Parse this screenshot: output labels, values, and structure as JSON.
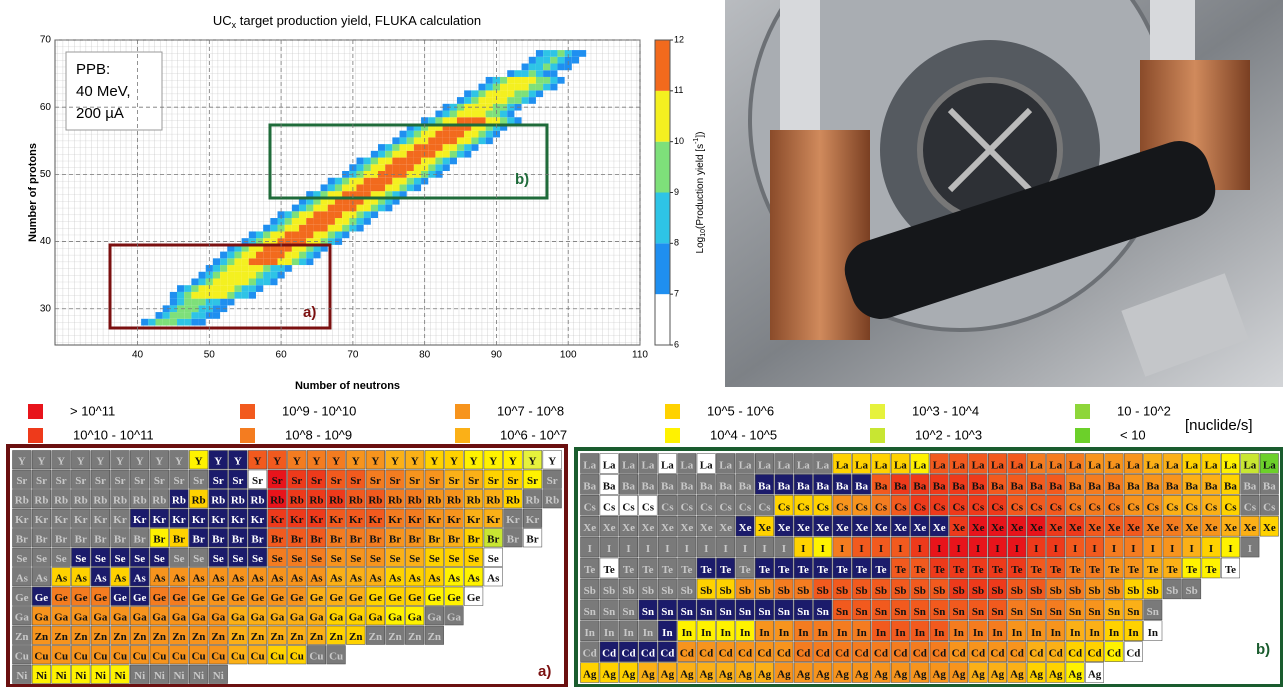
{
  "chart_data": {
    "type": "heatmap",
    "title": [
      "UC",
      "x",
      " target production yield, FLUKA calculation"
    ],
    "xlabel": "Number of neutrons",
    "ylabel": "Number of protons",
    "xlim": [
      28.5,
      110
    ],
    "ylim": [
      24.6,
      70
    ],
    "xticks": [
      40,
      50,
      60,
      70,
      80,
      90,
      100,
      110
    ],
    "yticks": [
      30,
      40,
      50,
      60,
      70
    ],
    "annotation": [
      "PPB:",
      "40 MeV,",
      "200 µA"
    ],
    "regions": [
      "a)",
      "b)"
    ],
    "colorbar": {
      "label": [
        "Log",
        "10",
        "(Production yield [s",
        "-1",
        "])"
      ],
      "lim": [
        6,
        12
      ],
      "ticks": [
        6,
        7,
        8,
        9,
        10,
        11,
        12
      ],
      "colors": [
        "#ffffff",
        "#1f8ff0",
        "#2ec4e6",
        "#7ee07a",
        "#f4f020",
        "#f26a1d"
      ]
    },
    "rows": [
      {
        "z": 28,
        "n0": 41,
        "levels": [
          7,
          8,
          9,
          9.5,
          9,
          8,
          8,
          7,
          7
        ]
      },
      {
        "z": 29,
        "n0": 43,
        "levels": [
          7,
          8,
          9,
          9.5,
          9,
          8,
          8,
          7,
          7
        ]
      },
      {
        "z": 30,
        "n0": 44,
        "levels": [
          7,
          8,
          9,
          9.5,
          9,
          8,
          8,
          7,
          7
        ]
      },
      {
        "z": 31,
        "n0": 45,
        "levels": [
          7,
          8,
          9,
          9.5,
          9,
          8,
          8,
          7,
          7
        ]
      },
      {
        "z": 32,
        "n0": 45,
        "levels": [
          7,
          8,
          9,
          10,
          10,
          10.5,
          10,
          10,
          9,
          8,
          8,
          7
        ]
      },
      {
        "z": 33,
        "n0": 46,
        "levels": [
          7,
          8,
          9,
          10,
          10,
          10.5,
          10,
          10,
          9,
          8,
          8,
          7
        ]
      },
      {
        "z": 34,
        "n0": 48,
        "levels": [
          7,
          8,
          9,
          10,
          10,
          10.5,
          10,
          10,
          9,
          8,
          8,
          7
        ]
      },
      {
        "z": 35,
        "n0": 49,
        "levels": [
          7,
          8,
          9,
          10,
          10,
          10.5,
          10,
          10,
          9,
          8,
          8,
          7
        ]
      },
      {
        "z": 36,
        "n0": 50,
        "levels": [
          7,
          8,
          9,
          10,
          10,
          10.5,
          10,
          10,
          9,
          8,
          8,
          7
        ]
      },
      {
        "z": 37,
        "n0": 51,
        "levels": [
          7,
          8,
          9,
          10,
          10,
          11,
          11.5,
          11.5,
          11,
          10,
          10,
          9,
          8,
          7
        ]
      },
      {
        "z": 38,
        "n0": 52,
        "levels": [
          7,
          8,
          9,
          10,
          10,
          11,
          11.5,
          11.5,
          11,
          10,
          10,
          9,
          8,
          7
        ]
      },
      {
        "z": 39,
        "n0": 53,
        "levels": [
          7,
          8,
          9,
          10,
          10,
          11,
          11.5,
          11.5,
          11,
          10,
          10,
          9,
          8,
          7
        ]
      },
      {
        "z": 40,
        "n0": 55,
        "levels": [
          7,
          8,
          9,
          10,
          10,
          11,
          11.5,
          11.5,
          11,
          10,
          10,
          9,
          8,
          7
        ]
      },
      {
        "z": 41,
        "n0": 56,
        "levels": [
          7,
          8,
          9,
          10,
          10,
          11,
          11.5,
          11.5,
          11,
          10,
          10,
          9,
          8,
          7
        ]
      },
      {
        "z": 42,
        "n0": 58,
        "levels": [
          7,
          8,
          9,
          10,
          10,
          11,
          11.5,
          11.5,
          11,
          10,
          10,
          9,
          8,
          7
        ]
      },
      {
        "z": 43,
        "n0": 59,
        "levels": [
          7,
          8,
          9,
          10,
          10,
          11,
          11.5,
          11.5,
          11,
          10,
          10,
          9,
          8,
          7
        ]
      },
      {
        "z": 44,
        "n0": 60,
        "levels": [
          7,
          8,
          9,
          10,
          10,
          11,
          11.5,
          11.5,
          11,
          10,
          10,
          9,
          8,
          7
        ]
      },
      {
        "z": 45,
        "n0": 62,
        "levels": [
          7,
          8,
          9,
          10,
          10,
          11,
          11.5,
          11.5,
          11,
          10,
          10,
          9,
          8,
          7
        ]
      },
      {
        "z": 46,
        "n0": 63,
        "levels": [
          7,
          8,
          9,
          10,
          10,
          11,
          11.5,
          11.5,
          11,
          10,
          10,
          9,
          8,
          7
        ]
      },
      {
        "z": 47,
        "n0": 64,
        "levels": [
          7,
          8,
          9,
          10,
          10,
          11,
          11.5,
          11.5,
          11,
          10,
          10,
          9,
          8,
          7
        ]
      },
      {
        "z": 48,
        "n0": 66,
        "levels": [
          7,
          8,
          9,
          10,
          10,
          11,
          11.5,
          11.5,
          11,
          10,
          10,
          9,
          8,
          7
        ]
      },
      {
        "z": 49,
        "n0": 67,
        "levels": [
          7,
          8,
          9,
          10,
          10,
          11,
          11.5,
          11.5,
          11,
          10,
          10,
          9,
          8,
          7
        ]
      },
      {
        "z": 50,
        "n0": 69,
        "levels": [
          7,
          8,
          9,
          10,
          10,
          11,
          11.5,
          11.5,
          11,
          10,
          10,
          9,
          8,
          7
        ]
      },
      {
        "z": 51,
        "n0": 70,
        "levels": [
          7,
          8,
          9,
          10,
          10,
          11,
          11.5,
          11.5,
          11,
          10,
          10,
          9,
          8,
          7
        ]
      },
      {
        "z": 52,
        "n0": 71,
        "levels": [
          7,
          8,
          9,
          10,
          10,
          11,
          11.5,
          11.5,
          11,
          10,
          10,
          9,
          8,
          7
        ]
      },
      {
        "z": 53,
        "n0": 73,
        "levels": [
          7,
          8,
          9,
          10,
          10,
          11,
          11.5,
          11.5,
          11,
          10,
          10,
          9,
          8,
          7
        ]
      },
      {
        "z": 54,
        "n0": 74,
        "levels": [
          7,
          8,
          9,
          10,
          10,
          11,
          11.5,
          11.5,
          11,
          10,
          10,
          9,
          8,
          7
        ]
      },
      {
        "z": 55,
        "n0": 76,
        "levels": [
          7,
          8,
          9,
          10,
          10,
          11,
          11.5,
          11.5,
          11,
          10,
          10,
          9,
          8,
          7
        ]
      },
      {
        "z": 56,
        "n0": 77,
        "levels": [
          7,
          8,
          9,
          10,
          10,
          11,
          11.5,
          11.5,
          11,
          10,
          10,
          9,
          8,
          7
        ]
      },
      {
        "z": 57,
        "n0": 78,
        "levels": [
          7,
          8,
          9,
          10,
          10,
          11,
          11.5,
          11.5,
          11,
          10,
          10,
          9,
          8,
          7
        ]
      },
      {
        "z": 58,
        "n0": 80,
        "levels": [
          7,
          8,
          9,
          10,
          10,
          11,
          11.5,
          11.5,
          11,
          10,
          10,
          9,
          8,
          7
        ]
      },
      {
        "z": 59,
        "n0": 82,
        "levels": [
          7,
          8,
          9,
          10,
          10,
          10.5,
          10,
          9,
          9,
          8,
          7
        ]
      },
      {
        "z": 60,
        "n0": 83,
        "levels": [
          7,
          8,
          9,
          10,
          10,
          10.5,
          10,
          9,
          9,
          8,
          7
        ]
      },
      {
        "z": 61,
        "n0": 85,
        "levels": [
          7,
          8,
          9,
          10,
          10,
          10.5,
          10,
          9,
          9,
          8,
          7
        ]
      },
      {
        "z": 62,
        "n0": 86,
        "levels": [
          7,
          8,
          9,
          10,
          10,
          10.5,
          10,
          9,
          9,
          8,
          7
        ]
      },
      {
        "z": 63,
        "n0": 88,
        "levels": [
          7,
          8,
          9,
          10,
          10,
          10.5,
          10,
          9,
          9,
          8,
          7
        ]
      },
      {
        "z": 64,
        "n0": 89,
        "levels": [
          7,
          8,
          9,
          10,
          10,
          10.5,
          10,
          9,
          9,
          8,
          7
        ]
      },
      {
        "z": 65,
        "n0": 92,
        "levels": [
          7,
          8,
          8,
          9,
          8,
          7,
          7
        ]
      },
      {
        "z": 66,
        "n0": 94,
        "levels": [
          7,
          8,
          8,
          9,
          8,
          7,
          7
        ]
      },
      {
        "z": 67,
        "n0": 95,
        "levels": [
          7,
          8,
          8,
          9,
          8,
          7,
          7
        ]
      },
      {
        "z": 68,
        "n0": 96,
        "levels": [
          7,
          8,
          8,
          9,
          8,
          7,
          7
        ]
      }
    ]
  },
  "legend": {
    "unit": "[nuclide/s]",
    "entries": [
      {
        "code": "A",
        "label": "> 10^11",
        "color": "#e8141b"
      },
      {
        "code": "C",
        "label": "10^9 - 10^10",
        "color": "#f25a1e"
      },
      {
        "code": "E",
        "label": "10^7 - 10^8",
        "color": "#f7941d"
      },
      {
        "code": "G",
        "label": "10^5 - 10^6",
        "color": "#ffd200"
      },
      {
        "code": "I",
        "label": "10^3 - 10^4",
        "color": "#e6f23c"
      },
      {
        "code": "K",
        "label": "10 - 10^2",
        "color": "#8ed63a"
      },
      {
        "code": "B",
        "label": "10^10 - 10^11",
        "color": "#ee3a1b"
      },
      {
        "code": "D",
        "label": "10^8 - 10^9",
        "color": "#f47c20"
      },
      {
        "code": "F",
        "label": "10^6 - 10^7",
        "color": "#fbb017"
      },
      {
        "code": "H",
        "label": "10^4 - 10^5",
        "color": "#fff200"
      },
      {
        "code": "J",
        "label": "10^2 - 10^3",
        "color": "#c8e632"
      },
      {
        "code": "L",
        "label": "< 10",
        "color": "#6cd02a"
      }
    ]
  },
  "cell_colors": {
    "g": "#7a7a7a",
    "n": "#1b1b6b",
    "w": "#ffffff"
  },
  "tables": [
    {
      "label": "a)",
      "rows": [
        {
          "symbol": "Y",
          "cells": "gggggggggHnnCCDDDEEFFGGHHHIw"
        },
        {
          "symbol": "Sr",
          "cells": "ggggggggggnnwABBCCDDEEFFGGHg"
        },
        {
          "symbol": "Rb",
          "cells": "ggggggggnGnnnABBBCCDDEEFFGgg"
        },
        {
          "symbol": "Kr",
          "cells": "ggggggnnnnnnnBBBCCCDDEEFFgg."
        },
        {
          "symbol": "Br",
          "cells": "gggggggHGnnnnCCCDDDEEFFGJgw."
        },
        {
          "symbol": "Se",
          "cells": "gggnnnnnggnnnDDDEEEFFGGGw..."
        },
        {
          "symbol": "As",
          "cells": "ggGGnGnEEEEEEEEEFFFGGGHHw..."
        },
        {
          "symbol": "Ge",
          "cells": "gnDDDnnDDEEEEEEFFFGGGHHw...."
        },
        {
          "symbol": "Ga",
          "cells": "gEEEEEEEEEEFFFFFGGGHHgg....."
        },
        {
          "symbol": "Zn",
          "cells": "gEEEEEEEEEEFFFFFGGgggg......"
        },
        {
          "symbol": "Cu",
          "cells": "gEEEEEEEEEEFFGGgg..........."
        },
        {
          "symbol": "Ni",
          "cells": "gHHHHHggggg................."
        }
      ]
    },
    {
      "label": "b)",
      "rows": [
        {
          "symbol": "La",
          "cells": "gwggwgwggggggGGGGHCCCCCDDDEEEFFGGHJL"
        },
        {
          "symbol": "Ba",
          "cells": "gwgggggggnnnnnnCBBBBBCCCCDDDEEEFFGgg"
        },
        {
          "symbol": "Cs",
          "cells": "gwwwggggggGGGEEDCBBBBBCCCDDDEEFFFGgg"
        },
        {
          "symbol": "Xe",
          "cells": "ggggggggnGnnnnnnnnnBAAAABBCCCDDEEFFG"
        },
        {
          "symbol": "I",
          "cells": "gggggggggggGHDCCCBAAAAABBCCDDEEFGHg."
        },
        {
          "symbol": "Te",
          "cells": "gwggggnngnnnnnnnCCBBBBBCCDDEEFFHHw.."
        },
        {
          "symbol": "Sb",
          "cells": "ggggggGGEEDDCCCCCCCBBBCCDDEEGGgg...."
        },
        {
          "symbol": "Sn",
          "cells": "gggnnnnnnnnnnCCCCCCCCCDDDEEFFg......"
        },
        {
          "symbol": "In",
          "cells": "ggggnHHHHEEDDDDCCCCDDDEEEFFGGw......"
        },
        {
          "symbol": "Cd",
          "cells": "gnnnnEEEEEEDDDDDDDDEEEEFFGGHw......."
        },
        {
          "symbol": "Ag",
          "cells": "GGGFFFFFFFEEEEEEEEEEFFFGGHw........."
        }
      ]
    }
  ]
}
